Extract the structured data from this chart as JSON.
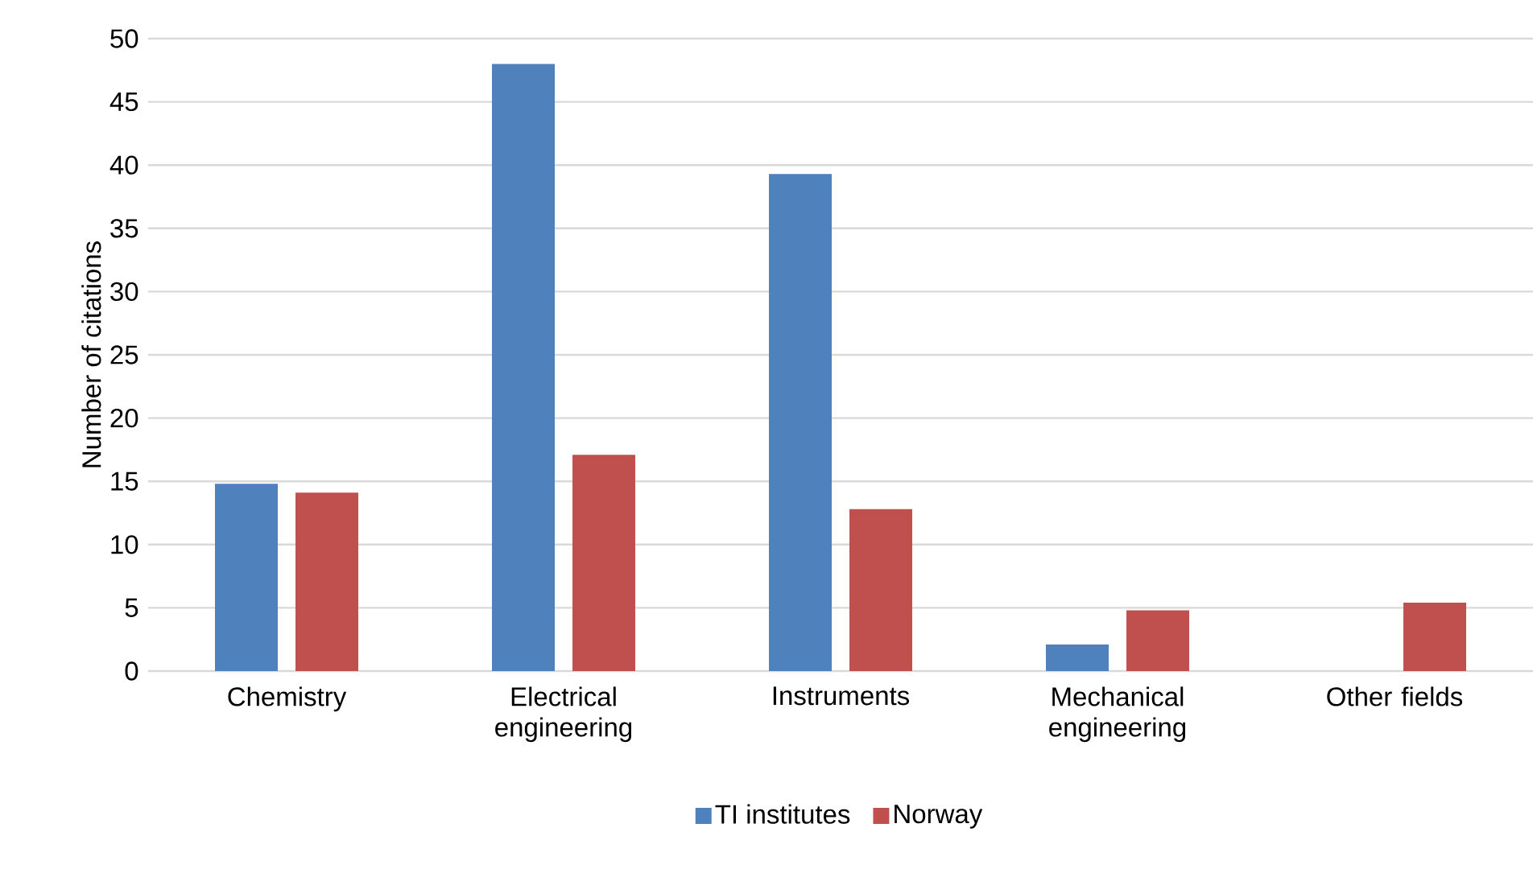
{
  "chart_data": {
    "type": "bar",
    "ylabel": "Number of citations",
    "categories": [
      "Chemistry",
      "Electrical engineering",
      "Instruments",
      "Mechanical engineering",
      "Other fields"
    ],
    "series": [
      {
        "name": "TI institutes",
        "color": "#4f81bd",
        "values": [
          14.8,
          48.0,
          39.3,
          2.1,
          null
        ]
      },
      {
        "name": "Norway",
        "color": "#c0504d",
        "values": [
          14.1,
          17.1,
          12.8,
          4.8,
          5.4
        ]
      }
    ],
    "ylim": [
      0,
      50
    ],
    "yticks": [
      0,
      5,
      10,
      15,
      20,
      25,
      30,
      35,
      40,
      45,
      50
    ],
    "grid": "y",
    "legend": "bottom"
  }
}
